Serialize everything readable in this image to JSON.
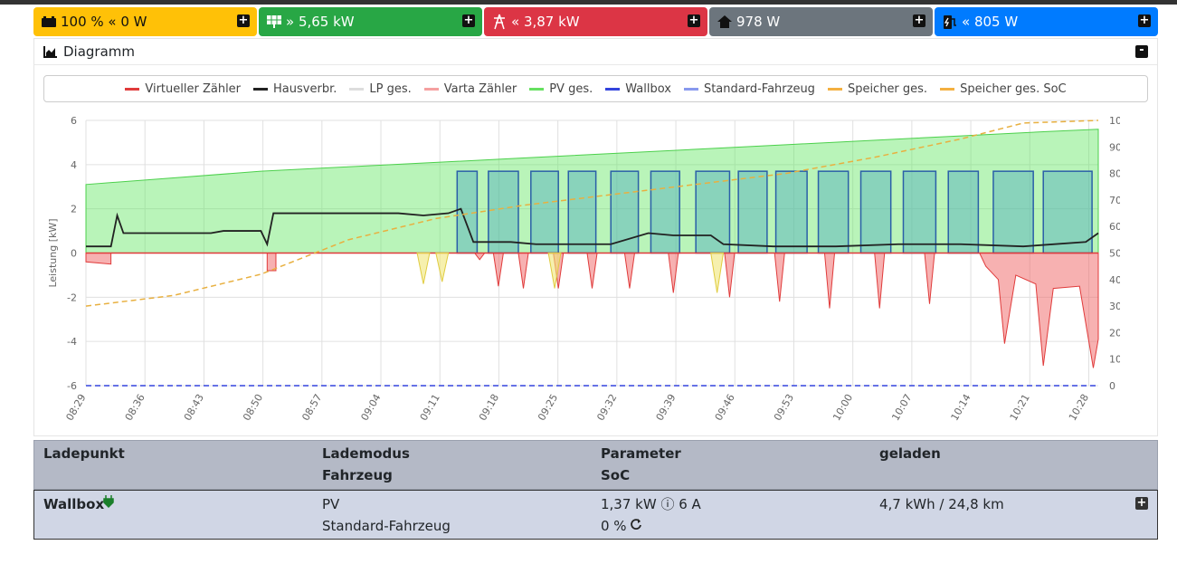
{
  "tiles": [
    {
      "name": "battery",
      "text": "100 % « 0 W",
      "color": "#ffc107"
    },
    {
      "name": "pv",
      "text": "» 5,65 kW",
      "color": "#28a745"
    },
    {
      "name": "grid",
      "text": "« 3,87 kW",
      "color": "#dc3545"
    },
    {
      "name": "house",
      "text": "978 W",
      "color": "#6c757d"
    },
    {
      "name": "charge",
      "text": "« 805 W",
      "color": "#007bff"
    }
  ],
  "panel": {
    "title": "Diagramm"
  },
  "legend": [
    {
      "label": "Virtueller Zähler",
      "color": "#e03b3b"
    },
    {
      "label": "Hausverbr.",
      "color": "#222222"
    },
    {
      "label": "LP ges.",
      "color": "#dddddd"
    },
    {
      "label": "Varta Zähler",
      "color": "#f5a0a0"
    },
    {
      "label": "PV ges.",
      "color": "#66e060"
    },
    {
      "label": "Wallbox",
      "color": "#3344dd"
    },
    {
      "label": "Standard-Fahrzeug",
      "color": "#8899ee"
    },
    {
      "label": "Speicher ges.",
      "color": "#f4b040"
    },
    {
      "label": "Speicher ges. SoC",
      "color": "#f4b040"
    }
  ],
  "chart_data": {
    "type": "line",
    "ylabel": "Leistung [kW]",
    "y2label": "SoC [%]",
    "ylim": [
      -6,
      6
    ],
    "y2lim": [
      0,
      100
    ],
    "yticks": [
      "6",
      "4",
      "2",
      "0",
      "-2",
      "-4",
      "-6"
    ],
    "y2ticks": [
      "100",
      "90",
      "80",
      "70",
      "60",
      "50",
      "40",
      "30",
      "20",
      "10",
      "0"
    ],
    "xticks": [
      "08:29",
      "08:36",
      "08:43",
      "08:50",
      "08:57",
      "09:04",
      "09:11",
      "09:18",
      "09:25",
      "09:32",
      "09:39",
      "09:46",
      "09:53",
      "10:00",
      "10:07",
      "10:14",
      "10:21",
      "10:28"
    ],
    "series": [
      {
        "name": "PV ges.",
        "points": [
          [
            0,
            3.1
          ],
          [
            7,
            3.4
          ],
          [
            14,
            3.7
          ],
          [
            21,
            3.9
          ],
          [
            28,
            4.1
          ],
          [
            35,
            4.3
          ],
          [
            42,
            4.5
          ],
          [
            49,
            4.7
          ],
          [
            56,
            4.9
          ],
          [
            63,
            5.1
          ],
          [
            70,
            5.3
          ],
          [
            77,
            5.5
          ],
          [
            81,
            5.6
          ]
        ]
      },
      {
        "name": "Hausverbr.",
        "points": [
          [
            0,
            0.3
          ],
          [
            2,
            0.3
          ],
          [
            2.5,
            1.7
          ],
          [
            3,
            0.9
          ],
          [
            10,
            0.9
          ],
          [
            11,
            1.0
          ],
          [
            14,
            1.0
          ],
          [
            14.5,
            0.4
          ],
          [
            15,
            1.8
          ],
          [
            25,
            1.8
          ],
          [
            27,
            1.7
          ],
          [
            29,
            1.8
          ],
          [
            30,
            2.0
          ],
          [
            31,
            0.5
          ],
          [
            34,
            0.5
          ],
          [
            36,
            0.4
          ],
          [
            42,
            0.4
          ],
          [
            45,
            0.9
          ],
          [
            47,
            0.8
          ],
          [
            50,
            0.8
          ],
          [
            51,
            0.4
          ],
          [
            55,
            0.3
          ],
          [
            60,
            0.3
          ],
          [
            65,
            0.4
          ],
          [
            70,
            0.4
          ],
          [
            75,
            0.3
          ],
          [
            80,
            0.5
          ],
          [
            81,
            0.9
          ]
        ]
      },
      {
        "name": "Wallbox",
        "points": [
          [
            0,
            -6
          ],
          [
            81,
            -6
          ]
        ]
      },
      {
        "name": "Speicher ges. SoC",
        "points": [
          [
            0,
            30
          ],
          [
            7,
            34
          ],
          [
            14,
            42
          ],
          [
            21,
            55
          ],
          [
            28,
            63
          ],
          [
            35,
            68
          ],
          [
            42,
            72
          ],
          [
            49,
            76
          ],
          [
            56,
            80
          ],
          [
            63,
            86
          ],
          [
            70,
            93
          ],
          [
            75,
            99
          ],
          [
            81,
            100
          ]
        ]
      }
    ]
  },
  "table": {
    "headers": [
      [
        "Ladepunkt",
        ""
      ],
      [
        "Lademodus",
        "Fahrzeug"
      ],
      [
        "Parameter",
        "SoC"
      ],
      [
        "geladen",
        ""
      ]
    ],
    "row": {
      "name": "Wallbox",
      "mode": "PV",
      "vehicle": "Standard-Fahrzeug",
      "param": "1,37 kW ⓘ 6 A",
      "soc": "0 %",
      "charged": "4,7 kWh / 24,8 km"
    }
  }
}
